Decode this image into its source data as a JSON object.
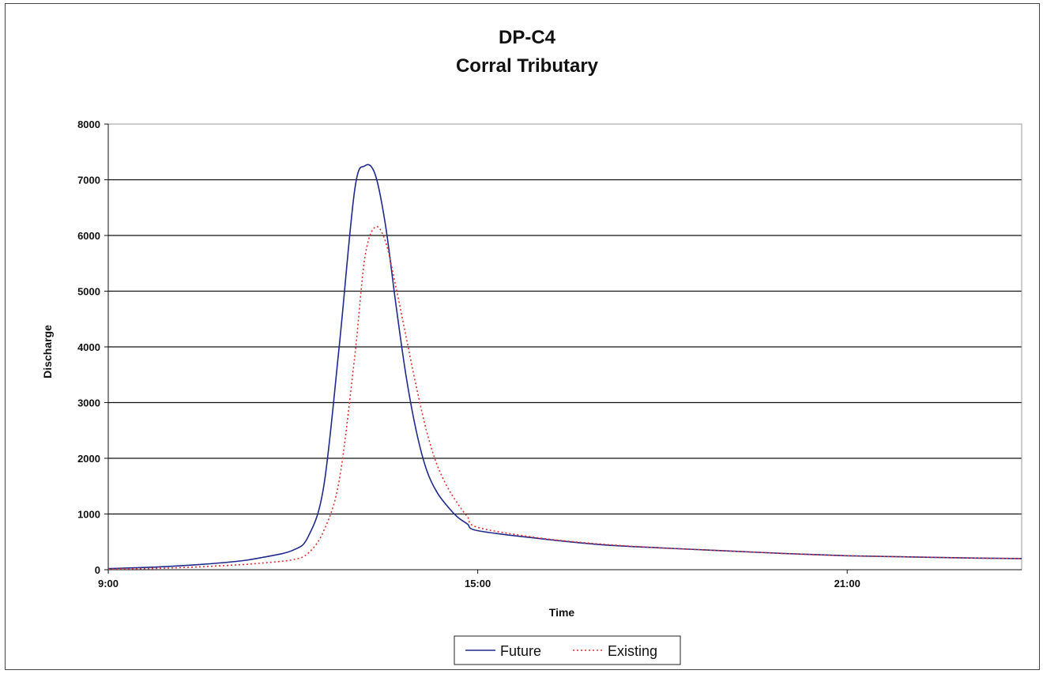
{
  "chart_data": {
    "type": "line",
    "title": "DP-C4",
    "subtitle": "Corral Tributary",
    "xlabel": "Time",
    "ylabel": "Discharge",
    "xlim": [
      "9:00",
      "23:50"
    ],
    "x_ticks": [
      "9:00",
      "15:00",
      "21:00"
    ],
    "ylim": [
      0,
      8000
    ],
    "y_ticks": [
      "0",
      "1000",
      "2000",
      "3000",
      "4000",
      "5000",
      "6000",
      "7000",
      "8000"
    ],
    "grid": "horizontal",
    "legend_position": "bottom-center",
    "series": [
      {
        "name": "Future",
        "color": "#1f2a8c",
        "style": "solid",
        "x": [
          "9:00",
          "10:00",
          "11:00",
          "11:30",
          "12:00",
          "12:15",
          "12:30",
          "12:45",
          "13:00",
          "13:10",
          "13:20",
          "13:30",
          "13:40",
          "13:50",
          "14:00",
          "14:10",
          "14:20",
          "14:30",
          "14:40",
          "14:50",
          "15:00",
          "16:00",
          "17:00",
          "18:00",
          "19:00",
          "20:00",
          "21:00",
          "22:00",
          "23:00",
          "23:50"
        ],
        "values": [
          20,
          60,
          140,
          220,
          350,
          600,
          1500,
          4000,
          6800,
          7250,
          7100,
          6200,
          4800,
          3500,
          2500,
          1800,
          1400,
          1150,
          950,
          820,
          700,
          560,
          450,
          390,
          340,
          290,
          250,
          230,
          210,
          200
        ]
      },
      {
        "name": "Existing",
        "color": "#e03030",
        "style": "dotted",
        "x": [
          "9:00",
          "10:00",
          "11:00",
          "11:30",
          "12:00",
          "12:15",
          "12:30",
          "12:45",
          "13:00",
          "13:10",
          "13:20",
          "13:30",
          "13:40",
          "13:50",
          "14:00",
          "14:10",
          "14:20",
          "14:30",
          "14:40",
          "14:50",
          "15:00",
          "16:00",
          "17:00",
          "18:00",
          "19:00",
          "20:00",
          "21:00",
          "22:00",
          "23:00",
          "23:50"
        ],
        "values": [
          10,
          30,
          80,
          120,
          180,
          300,
          700,
          1600,
          3800,
          5600,
          6150,
          5900,
          5100,
          4200,
          3300,
          2500,
          1900,
          1500,
          1200,
          950,
          760,
          570,
          460,
          390,
          340,
          290,
          250,
          230,
          210,
          200
        ]
      }
    ]
  }
}
